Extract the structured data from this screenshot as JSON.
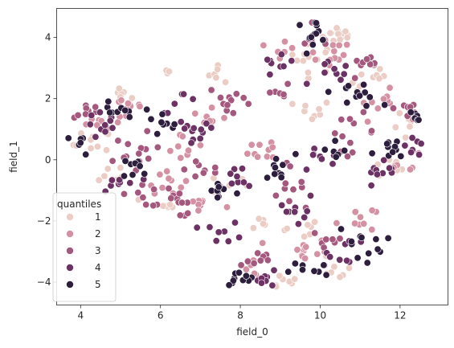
{
  "chart_data": {
    "type": "scatter",
    "title": "",
    "xlabel": "field_0",
    "ylabel": "field_1",
    "xlim": [
      3.4,
      13.2
    ],
    "ylim": [
      -4.75,
      4.95
    ],
    "x_ticks": [
      4,
      6,
      8,
      10,
      12
    ],
    "y_ticks": [
      -4,
      -2,
      0,
      2,
      4
    ],
    "grid": false,
    "legend": {
      "title": "quantiles",
      "placement": "lower-left",
      "labels": [
        "1",
        "2",
        "3",
        "4",
        "5"
      ]
    },
    "series_colors": [
      "#ebcdc6",
      "#d491a4",
      "#a5587e",
      "#6b3263",
      "#2d1e3e"
    ],
    "series": [
      {
        "name": "1",
        "clusters": [
          [
            10.5,
            4.1,
            0.35,
            0.25,
            14
          ],
          [
            9.8,
            3.3,
            0.5,
            0.4,
            12
          ],
          [
            11.3,
            2.6,
            0.5,
            0.4,
            10
          ],
          [
            4.3,
            0.5,
            0.4,
            0.4,
            10
          ],
          [
            7.5,
            2.9,
            0.3,
            0.3,
            6
          ],
          [
            9.8,
            1.6,
            0.4,
            0.3,
            8
          ],
          [
            11.7,
            -0.3,
            0.4,
            0.3,
            8
          ],
          [
            10.3,
            -3.6,
            0.4,
            0.3,
            8
          ],
          [
            8.6,
            -2.2,
            0.4,
            0.3,
            6
          ],
          [
            9.0,
            -4.0,
            0.4,
            0.2,
            8
          ],
          [
            5.1,
            2.1,
            0.3,
            0.2,
            6
          ],
          [
            12.2,
            1.0,
            0.3,
            0.4,
            6
          ],
          [
            4.8,
            -0.4,
            0.3,
            0.3,
            6
          ],
          [
            6.2,
            2.9,
            0.15,
            0.1,
            3
          ],
          [
            7.7,
            -0.8,
            0.4,
            0.3,
            6
          ],
          [
            6.0,
            -1.5,
            0.4,
            0.3,
            6
          ],
          [
            9.5,
            -2.3,
            0.4,
            0.3,
            6
          ]
        ]
      },
      {
        "name": "2",
        "clusters": [
          [
            10.2,
            3.6,
            0.6,
            0.5,
            14
          ],
          [
            5.2,
            1.7,
            0.4,
            0.4,
            12
          ],
          [
            8.7,
            0.4,
            0.4,
            0.4,
            10
          ],
          [
            9.6,
            -3.0,
            0.5,
            0.4,
            12
          ],
          [
            6.1,
            -0.6,
            0.4,
            0.4,
            10
          ],
          [
            11.5,
            1.8,
            0.5,
            0.4,
            10
          ],
          [
            7.3,
            1.3,
            0.4,
            0.3,
            8
          ],
          [
            4.5,
            1.3,
            0.4,
            0.3,
            8
          ],
          [
            10.9,
            -1.9,
            0.4,
            0.4,
            10
          ],
          [
            7.0,
            -1.5,
            0.4,
            0.3,
            8
          ],
          [
            8.3,
            -3.6,
            0.3,
            0.3,
            6
          ],
          [
            12.1,
            -0.1,
            0.3,
            0.3,
            6
          ],
          [
            9.1,
            3.7,
            0.3,
            0.3,
            6
          ],
          [
            6.6,
            0.4,
            0.4,
            0.4,
            8
          ]
        ]
      },
      {
        "name": "3",
        "clusters": [
          [
            5.4,
            0.1,
            0.5,
            0.6,
            14
          ],
          [
            7.8,
            1.9,
            0.5,
            0.5,
            12
          ],
          [
            10.8,
            0.9,
            0.5,
            0.5,
            12
          ],
          [
            6.4,
            -1.4,
            0.5,
            0.4,
            12
          ],
          [
            9.1,
            -0.8,
            0.4,
            0.5,
            10
          ],
          [
            11.2,
            3.0,
            0.4,
            0.3,
            10
          ],
          [
            4.2,
            1.6,
            0.3,
            0.2,
            8
          ],
          [
            8.4,
            -3.3,
            0.4,
            0.4,
            8
          ],
          [
            10.2,
            -2.6,
            0.4,
            0.4,
            8
          ],
          [
            12.2,
            1.7,
            0.3,
            0.4,
            8
          ],
          [
            7.1,
            -0.3,
            0.4,
            0.4,
            8
          ],
          [
            9.9,
            3.9,
            0.4,
            0.3,
            8
          ],
          [
            5.6,
            -1.2,
            0.4,
            0.3,
            6
          ],
          [
            8.9,
            2.2,
            0.3,
            0.3,
            6
          ]
        ]
      },
      {
        "name": "4",
        "clusters": [
          [
            6.8,
            0.8,
            0.5,
            0.5,
            12
          ],
          [
            4.6,
            1.1,
            0.4,
            0.4,
            10
          ],
          [
            10.3,
            2.7,
            0.4,
            0.4,
            10
          ],
          [
            9.4,
            -1.6,
            0.4,
            0.5,
            10
          ],
          [
            11.5,
            -0.6,
            0.5,
            0.4,
            10
          ],
          [
            8.0,
            -0.6,
            0.4,
            0.4,
            10
          ],
          [
            5.0,
            -0.8,
            0.4,
            0.4,
            8
          ],
          [
            9.0,
            3.2,
            0.4,
            0.4,
            8
          ],
          [
            7.6,
            -2.4,
            0.4,
            0.3,
            8
          ],
          [
            12.3,
            0.6,
            0.3,
            0.4,
            8
          ],
          [
            10.7,
            -3.0,
            0.4,
            0.4,
            8
          ],
          [
            8.7,
            -3.9,
            0.4,
            0.2,
            8
          ],
          [
            6.5,
            1.9,
            0.4,
            0.3,
            6
          ],
          [
            10.0,
            0.0,
            0.4,
            0.4,
            8
          ]
        ]
      },
      {
        "name": "5",
        "clusters": [
          [
            9.8,
            4.2,
            0.4,
            0.3,
            12
          ],
          [
            10.9,
            2.2,
            0.5,
            0.4,
            12
          ],
          [
            4.9,
            1.5,
            0.4,
            0.3,
            10
          ],
          [
            8.0,
            -3.9,
            0.4,
            0.2,
            10
          ],
          [
            11.0,
            -2.7,
            0.5,
            0.5,
            12
          ],
          [
            8.9,
            -0.3,
            0.4,
            0.4,
            10
          ],
          [
            6.0,
            1.1,
            0.4,
            0.4,
            8
          ],
          [
            11.8,
            0.2,
            0.4,
            0.4,
            10
          ],
          [
            9.7,
            -3.6,
            0.4,
            0.3,
            8
          ],
          [
            4.0,
            0.5,
            0.3,
            0.3,
            6
          ],
          [
            7.5,
            -1.0,
            0.4,
            0.4,
            8
          ],
          [
            12.4,
            1.4,
            0.2,
            0.3,
            6
          ],
          [
            10.3,
            0.3,
            0.3,
            0.4,
            6
          ],
          [
            5.5,
            -0.3,
            0.4,
            0.4,
            8
          ]
        ]
      }
    ]
  }
}
